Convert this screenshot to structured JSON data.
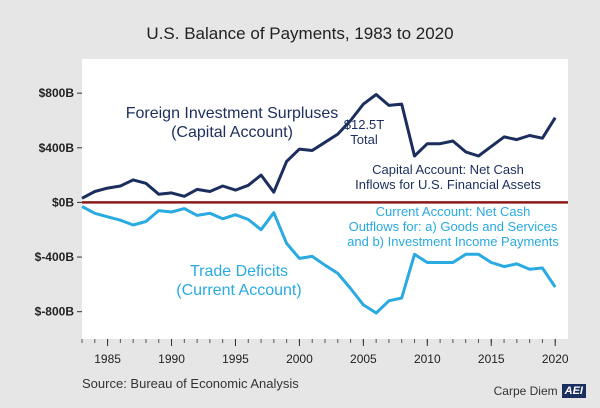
{
  "title": "U.S. Balance of Payments, 1983 to 2020",
  "source": "Source: Bureau of Economic Analysis",
  "brand": {
    "text": "Carpe Diem",
    "logo": "AEI"
  },
  "colors": {
    "capital": "#1b2e5e",
    "current": "#29aae1",
    "zero": "#8b1a1a",
    "plot_bg": "#ffffff",
    "page_bg": "#e6e6e6"
  },
  "annotations": {
    "capital_title": [
      "Foreign Investment Surpluses",
      "(Capital Account)"
    ],
    "total": [
      "$12.5T",
      "Total"
    ],
    "capital_desc": [
      "Capital Account: Net Cash",
      "Inflows for U.S. Financial Assets"
    ],
    "current_desc": [
      "Current Account: Net Cash",
      "Outflows for: a) Goods and Services",
      "and b) Investment Income Payments"
    ],
    "current_title": [
      "Trade Deficits",
      "(Current Account)"
    ]
  },
  "chart_data": {
    "type": "line",
    "title": "U.S. Balance of Payments, 1983 to 2020",
    "xlabel": "",
    "ylabel": "",
    "xlim": [
      1983,
      2021
    ],
    "ylim": [
      -1000,
      1050
    ],
    "x_ticks": [
      1985,
      1990,
      1995,
      2000,
      2005,
      2010,
      2015,
      2020
    ],
    "y_ticks": [
      800,
      400,
      0,
      -400,
      -800
    ],
    "y_tick_labels": [
      "$800B",
      "$400B",
      "$0B",
      "$-400B",
      "$-800B"
    ],
    "grid": false,
    "years": [
      1983,
      1984,
      1985,
      1986,
      1987,
      1988,
      1989,
      1990,
      1991,
      1992,
      1993,
      1994,
      1995,
      1996,
      1997,
      1998,
      1999,
      2000,
      2001,
      2002,
      2003,
      2004,
      2005,
      2006,
      2007,
      2008,
      2009,
      2010,
      2011,
      2012,
      2013,
      2014,
      2015,
      2016,
      2017,
      2018,
      2019,
      2020
    ],
    "series": [
      {
        "name": "Foreign Investment Surpluses (Capital Account)",
        "key": "capital",
        "values": [
          30,
          80,
          105,
          120,
          165,
          140,
          60,
          70,
          45,
          95,
          80,
          120,
          90,
          125,
          200,
          75,
          300,
          390,
          380,
          440,
          500,
          600,
          720,
          790,
          710,
          720,
          340,
          430,
          430,
          450,
          370,
          340,
          410,
          480,
          460,
          490,
          470,
          620
        ]
      },
      {
        "name": "Trade Deficits (Current Account)",
        "key": "current",
        "values": [
          -30,
          -80,
          -105,
          -130,
          -165,
          -140,
          -60,
          -70,
          -45,
          -95,
          -80,
          -120,
          -90,
          -125,
          -200,
          -75,
          -300,
          -410,
          -395,
          -460,
          -520,
          -630,
          -750,
          -810,
          -720,
          -700,
          -380,
          -440,
          -440,
          -440,
          -380,
          -380,
          -440,
          -470,
          -450,
          -490,
          -480,
          -620
        ]
      }
    ]
  }
}
